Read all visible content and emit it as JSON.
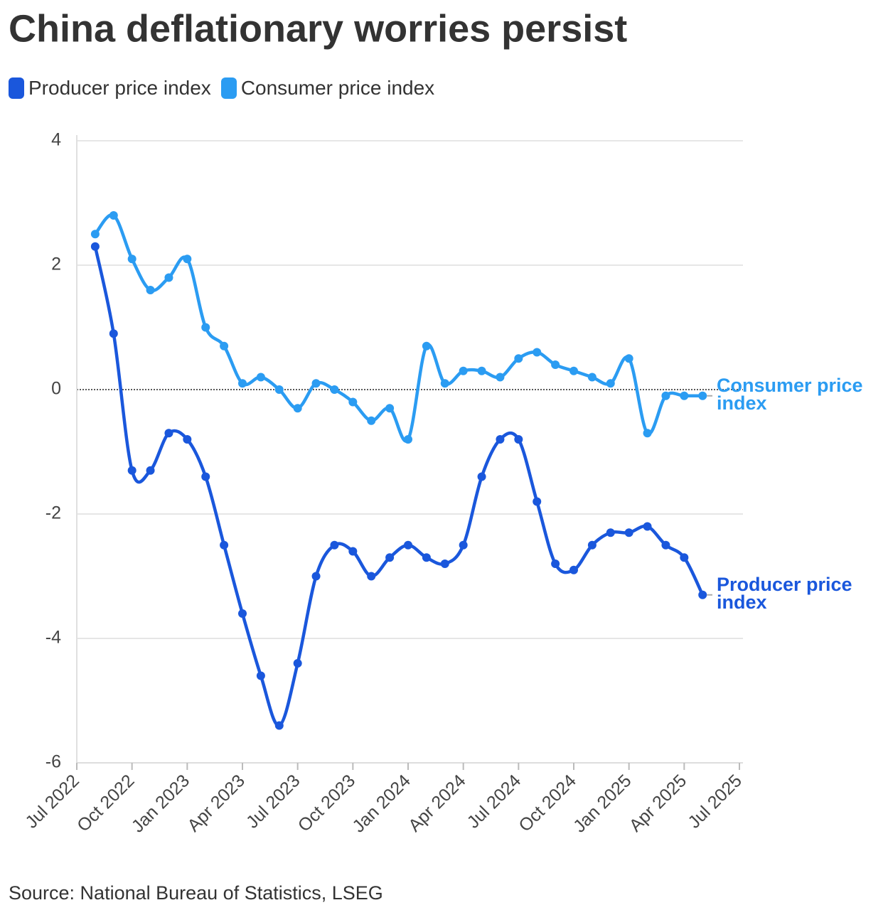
{
  "chart_data": {
    "type": "line",
    "title": "China deflationary worries persist",
    "source": "Source: National Bureau of Statistics, LSEG",
    "x": [
      "2022-08",
      "2022-09",
      "2022-10",
      "2022-11",
      "2022-12",
      "2023-01",
      "2023-02",
      "2023-03",
      "2023-04",
      "2023-05",
      "2023-06",
      "2023-07",
      "2023-08",
      "2023-09",
      "2023-10",
      "2023-11",
      "2023-12",
      "2024-01",
      "2024-02",
      "2024-03",
      "2024-04",
      "2024-05",
      "2024-06",
      "2024-07",
      "2024-08",
      "2024-09",
      "2024-10",
      "2024-11",
      "2024-12",
      "2025-01",
      "2025-02",
      "2025-03",
      "2025-04",
      "2025-05"
    ],
    "series": [
      {
        "name": "Producer price index",
        "color": "#1a57dc",
        "values": [
          2.3,
          0.9,
          -1.3,
          -1.3,
          -0.7,
          -0.8,
          -1.4,
          -2.5,
          -3.6,
          -4.6,
          -5.4,
          -4.4,
          -3.0,
          -2.5,
          -2.6,
          -3.0,
          -2.7,
          -2.5,
          -2.7,
          -2.8,
          -2.5,
          -1.4,
          -0.8,
          -0.8,
          -1.8,
          -2.8,
          -2.9,
          -2.5,
          -2.3,
          -2.3,
          -2.2,
          -2.5,
          -2.7,
          -3.3
        ]
      },
      {
        "name": "Consumer price index",
        "color": "#2b9cf2",
        "values": [
          2.5,
          2.8,
          2.1,
          1.6,
          1.8,
          2.1,
          1.0,
          0.7,
          0.1,
          0.2,
          0.0,
          -0.3,
          0.1,
          0.0,
          -0.2,
          -0.5,
          -0.3,
          -0.8,
          0.7,
          0.1,
          0.3,
          0.3,
          0.2,
          0.5,
          0.6,
          0.4,
          0.3,
          0.2,
          0.1,
          0.5,
          -0.7,
          -0.1,
          -0.1,
          -0.1
        ]
      }
    ],
    "xlim": [
      "2022-07",
      "2025-07"
    ],
    "xticks": [
      {
        "value": "2022-07",
        "label": "Jul 2022"
      },
      {
        "value": "2022-10",
        "label": "Oct 2022"
      },
      {
        "value": "2023-01",
        "label": "Jan 2023"
      },
      {
        "value": "2023-04",
        "label": "Apr 2023"
      },
      {
        "value": "2023-07",
        "label": "Jul 2023"
      },
      {
        "value": "2023-10",
        "label": "Oct 2023"
      },
      {
        "value": "2024-01",
        "label": "Jan 2024"
      },
      {
        "value": "2024-04",
        "label": "Apr 2024"
      },
      {
        "value": "2024-07",
        "label": "Jul 2024"
      },
      {
        "value": "2024-10",
        "label": "Oct 2024"
      },
      {
        "value": "2025-01",
        "label": "Jan 2025"
      },
      {
        "value": "2025-04",
        "label": "Apr 2025"
      },
      {
        "value": "2025-07",
        "label": "Jul 2025"
      }
    ],
    "ylim": [
      -6,
      4
    ],
    "yticks": [
      -6,
      -4,
      -2,
      0,
      2,
      4
    ],
    "grid": true
  }
}
